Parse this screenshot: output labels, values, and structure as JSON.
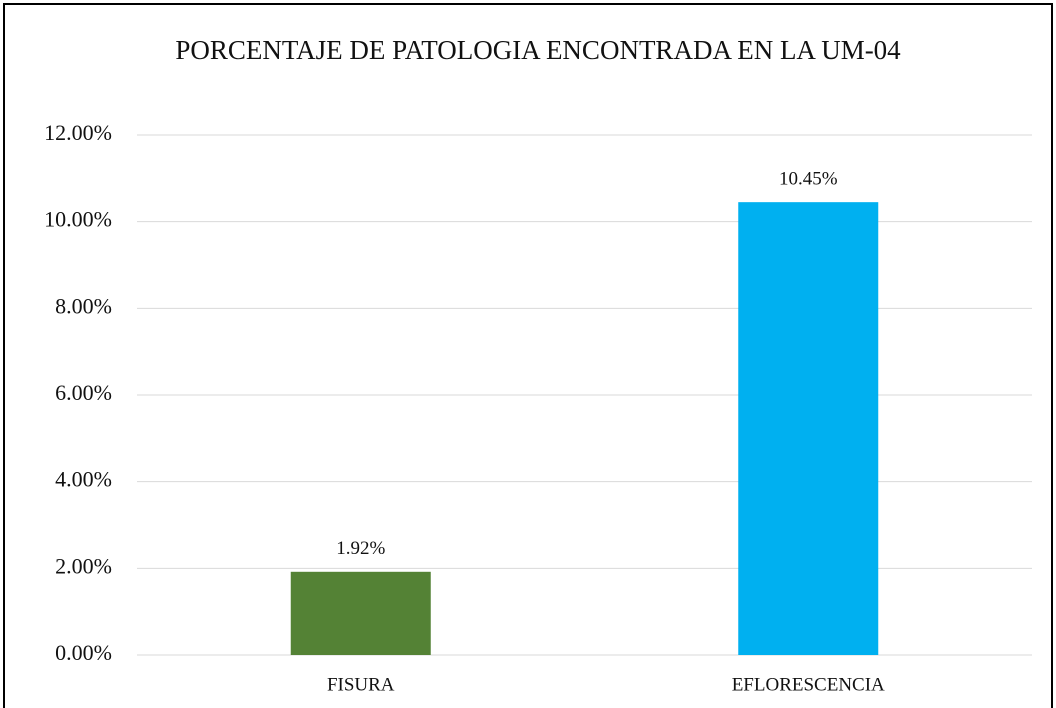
{
  "chart_data": {
    "type": "bar",
    "title": "PORCENTAJE DE PATOLOGIA ENCONTRADA EN LA UM-04",
    "categories": [
      "FISURA",
      "EFLORESCENCIA"
    ],
    "values": [
      1.92,
      10.45
    ],
    "value_labels": [
      "1.92%",
      "10.45%"
    ],
    "colors": [
      "#548235",
      "#00b0f0"
    ],
    "ylim": [
      0,
      12
    ],
    "yticks": [
      {
        "value": 0,
        "label": "0.00%"
      },
      {
        "value": 2,
        "label": "2.00%"
      },
      {
        "value": 4,
        "label": "4.00%"
      },
      {
        "value": 6,
        "label": "6.00%"
      },
      {
        "value": 8,
        "label": "8.00%"
      },
      {
        "value": 10,
        "label": "10.00%"
      },
      {
        "value": 12,
        "label": "12.00%"
      }
    ],
    "grid": true
  }
}
